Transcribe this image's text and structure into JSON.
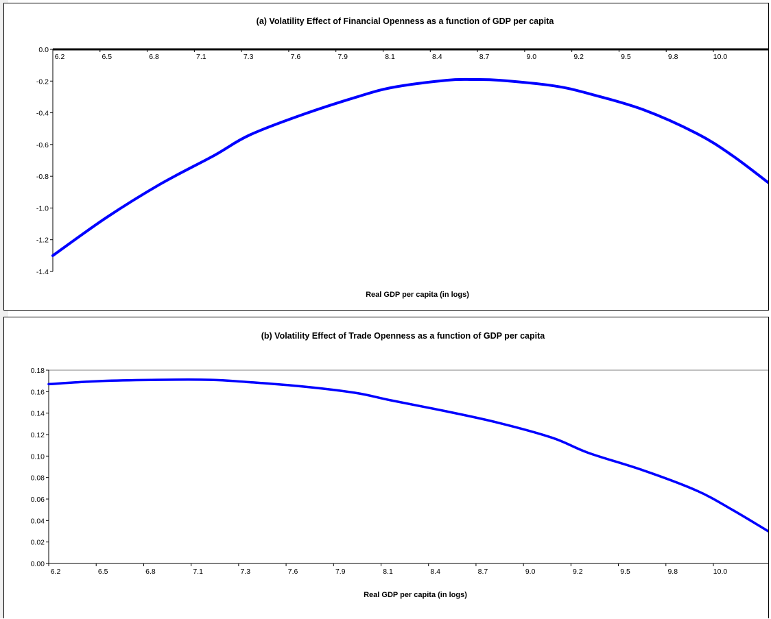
{
  "chart_data": [
    {
      "type": "line",
      "title": "(a) Volatility Effect of Financial Openness as a function of GDP per capita",
      "xlabel": "Real GDP per capita (in logs)",
      "ylabel": "",
      "x_tick_labels": [
        "6.2",
        "6.5",
        "6.8",
        "7.1",
        "7.3",
        "7.6",
        "7.9",
        "8.1",
        "8.4",
        "8.7",
        "9.0",
        "9.2",
        "9.5",
        "9.8",
        "10.0"
      ],
      "y_tick_labels": [
        "0.0",
        "-0.2",
        "-0.4",
        "-0.6",
        "-0.8",
        "-1.0",
        "-1.2",
        "-1.4"
      ],
      "xlim": [
        6.2,
        10.2
      ],
      "ylim": [
        -1.4,
        0.0
      ],
      "x_axis_position": "top (at y = 0)",
      "grid": false,
      "series": [
        {
          "color": "#0000ff",
          "x": [
            6.2,
            6.5,
            6.8,
            7.1,
            7.3,
            7.6,
            7.9,
            8.1,
            8.4,
            8.55,
            8.7,
            9.0,
            9.2,
            9.5,
            9.8,
            10.0,
            10.2
          ],
          "y": [
            -1.3,
            -1.06,
            -0.85,
            -0.67,
            -0.54,
            -0.41,
            -0.3,
            -0.24,
            -0.195,
            -0.19,
            -0.195,
            -0.23,
            -0.28,
            -0.38,
            -0.53,
            -0.67,
            -0.84
          ]
        }
      ]
    },
    {
      "type": "line",
      "title": "(b) Volatility Effect of Trade Openness as a function of GDP per capita",
      "xlabel": "Real GDP per capita (in logs)",
      "ylabel": "",
      "x_tick_labels": [
        "6.2",
        "6.5",
        "6.8",
        "7.1",
        "7.3",
        "7.6",
        "7.9",
        "8.1",
        "8.4",
        "8.7",
        "9.0",
        "9.2",
        "9.5",
        "9.8",
        "10.0"
      ],
      "y_tick_labels": [
        "0.18",
        "0.16",
        "0.14",
        "0.12",
        "0.10",
        "0.08",
        "0.06",
        "0.04",
        "0.02",
        "0.00"
      ],
      "xlim": [
        6.2,
        10.2
      ],
      "ylim": [
        0.0,
        0.18
      ],
      "x_axis_position": "bottom",
      "grid": false,
      "series": [
        {
          "color": "#0000ff",
          "x": [
            6.2,
            6.5,
            6.8,
            7.1,
            7.3,
            7.6,
            7.9,
            8.1,
            8.4,
            8.7,
            9.0,
            9.2,
            9.5,
            9.8,
            10.0,
            10.2
          ],
          "y": [
            0.167,
            0.17,
            0.171,
            0.171,
            0.169,
            0.165,
            0.159,
            0.152,
            0.142,
            0.131,
            0.117,
            0.103,
            0.087,
            0.068,
            0.05,
            0.03
          ]
        }
      ]
    }
  ]
}
